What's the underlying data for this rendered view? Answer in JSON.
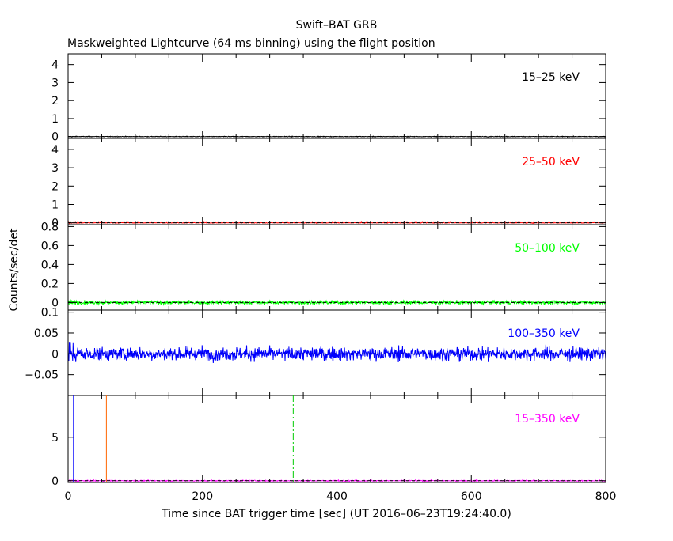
{
  "chart_data": {
    "type": "line",
    "title": "Swift–BAT GRB",
    "subtitle": "Maskweighted Lightcurve (64 ms binning) using the flight position",
    "xlabel": "Time since BAT trigger time [sec] (UT 2016–06–23T19:24:40.0)",
    "ylabel": "Counts/sec/det",
    "xlim": [
      0,
      800
    ],
    "xticks": [
      "0",
      "200",
      "400",
      "600",
      "800"
    ],
    "panels": [
      {
        "name": "15–25 keV",
        "color": "#000000",
        "ylim": [
          -0.1,
          4.6
        ],
        "yticks": [
          {
            "v": 0,
            "t": "0"
          },
          {
            "v": 1,
            "t": "1"
          },
          {
            "v": 2,
            "t": "2"
          },
          {
            "v": 3,
            "t": "3"
          },
          {
            "v": 4,
            "t": "4"
          }
        ],
        "noise": 0.03,
        "level": 0
      },
      {
        "name": "25–50 keV",
        "color": "#ff0000",
        "ylim": [
          -0.1,
          4.6
        ],
        "yticks": [
          {
            "v": 0,
            "t": "0"
          },
          {
            "v": 1,
            "t": "1"
          },
          {
            "v": 2,
            "t": "2"
          },
          {
            "v": 3,
            "t": "3"
          },
          {
            "v": 4,
            "t": "4"
          }
        ],
        "noise": 0.03,
        "level": 0
      },
      {
        "name": "50–100 keV",
        "color": "#00ff00",
        "ylim": [
          -0.08,
          0.82
        ],
        "yticks": [
          {
            "v": 0,
            "t": "0"
          },
          {
            "v": 0.2,
            "t": "0.2"
          },
          {
            "v": 0.4,
            "t": "0.4"
          },
          {
            "v": 0.6,
            "t": "0.6"
          },
          {
            "v": 0.8,
            "t": "0.8"
          }
        ],
        "noise": 0.03,
        "level": 0
      },
      {
        "name": "100–350 keV",
        "color": "#0000ff",
        "ylim": [
          -0.1,
          0.105
        ],
        "yticks": [
          {
            "v": -0.05,
            "t": "−0.05"
          },
          {
            "v": 0,
            "t": "0"
          },
          {
            "v": 0.05,
            "t": "0.05"
          },
          {
            "v": 0.1,
            "t": "0.1"
          }
        ],
        "noise": 0.025,
        "level": 0
      },
      {
        "name": "15–350 keV",
        "color": "#ff00ff",
        "ylim": [
          -0.2,
          9.8
        ],
        "yticks": [
          {
            "v": 0,
            "t": "0"
          },
          {
            "v": 5,
            "t": "5"
          }
        ],
        "noise": 0.1,
        "level": 0
      }
    ],
    "markers": [
      {
        "x": 8,
        "color": "#0000ff",
        "style": "solid"
      },
      {
        "x": 57,
        "color": "#ff6600",
        "style": "solid"
      },
      {
        "x": 335,
        "color": "#00cc00",
        "style": "dashdot"
      },
      {
        "x": 400,
        "color": "#006600",
        "style": "dashed"
      }
    ]
  }
}
